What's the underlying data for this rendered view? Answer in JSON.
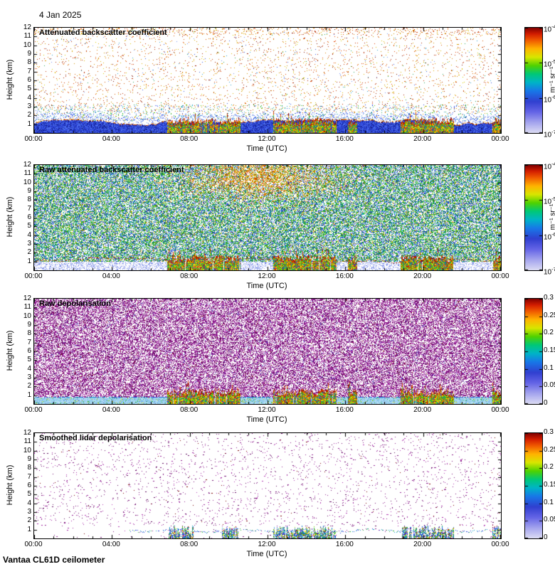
{
  "page": {
    "date_label": "4 Jan 2025",
    "footer": "Vantaa CL61D ceilometer"
  },
  "chart_data": {
    "type": "heatmap",
    "n_panels": 4,
    "x_axis": {
      "label": "Time (UTC)",
      "range_hours": [
        0,
        24
      ],
      "tick_labels": [
        "00:00",
        "04:00",
        "08:00",
        "12:00",
        "16:00",
        "20:00",
        "00:00"
      ]
    },
    "y_axis": {
      "label": "Height (km)",
      "range_km": [
        0,
        12
      ],
      "tick_labels": [
        "1",
        "2",
        "3",
        "4",
        "5",
        "6",
        "7",
        "8",
        "9",
        "10",
        "11",
        "12"
      ]
    },
    "colormap": "jet-like: pale lavender -> blue -> cyan -> green -> yellow -> orange -> dark red",
    "panels": [
      {
        "title": "Attenuated backscatter coefficient",
        "style": "sparse_backscatter",
        "colorbar": {
          "scale": "log",
          "min": 1e-07,
          "max": 0.0001,
          "unit": "m⁻¹ sr⁻¹",
          "ticks": [
            {
              "base": "10",
              "exp": "-4"
            },
            {
              "base": "10",
              "exp": "-5"
            },
            {
              "base": "10",
              "exp": "-6"
            },
            {
              "base": "10",
              "exp": "-7"
            }
          ]
        },
        "features": {
          "boundary_layer_top_km": 1.1,
          "strong_return_events_utc": [
            [
              6.85,
              10.6
            ],
            [
              12.3,
              15.55
            ],
            [
              16.15,
              16.6
            ],
            [
              18.85,
              21.6
            ],
            [
              23.55,
              24
            ]
          ],
          "description": "White background with sparse orange/red noise aloft; solid blue aerosol layer below ~1.2 km with red-brown top edge; strong multicolour low-level returns during events"
        }
      },
      {
        "title": "Raw attenuated backscatter coefficient",
        "style": "dense_backscatter",
        "colorbar": {
          "scale": "log",
          "min": 1e-07,
          "max": 0.0001,
          "unit": "m⁻¹ sr⁻¹",
          "ticks": [
            {
              "base": "10",
              "exp": "-4"
            },
            {
              "base": "10",
              "exp": "-5"
            },
            {
              "base": "10",
              "exp": "-6"
            },
            {
              "base": "10",
              "exp": "-7"
            }
          ]
        },
        "features": {
          "noise_blob": {
            "center_utc": 11.6,
            "center_km": 10.6,
            "sigma_h": 3.2,
            "sigma_km": 2.2
          },
          "strong_return_events_utc": [
            [
              6.85,
              10.6
            ],
            [
              12.3,
              15.55
            ],
            [
              16.15,
              16.6
            ],
            [
              18.85,
              21.6
            ],
            [
              23.55,
              24
            ]
          ],
          "description": "Dense green/cyan/blue speckle at all heights; orange noise patch near 10-12 km around 10:00-13:00; pale blue below ~1 km; strong multicolour low-level returns during events"
        }
      },
      {
        "title": "Raw depolarisation",
        "style": "dense_depol",
        "colorbar": {
          "scale": "linear",
          "min": 0,
          "max": 0.3,
          "ticks": [
            {
              "text": "0.3"
            },
            {
              "text": "0.25"
            },
            {
              "text": "0.2"
            },
            {
              "text": "0.15"
            },
            {
              "text": "0.1"
            },
            {
              "text": "0.05"
            },
            {
              "text": "0"
            }
          ]
        },
        "features": {
          "surface_layer_top_km": 0.75,
          "strong_return_events_utc": [
            [
              6.85,
              10.6
            ],
            [
              12.3,
              15.55
            ],
            [
              16.15,
              16.6
            ],
            [
              18.85,
              21.6
            ],
            [
              23.55,
              24
            ]
          ],
          "description": "Dense magenta/purple noise above ~0.8 km; pale cyan surface layer below with multicolour returns during events"
        }
      },
      {
        "title": "Smoothed lidar depolarisation",
        "style": "sparse_depol",
        "colorbar": {
          "scale": "linear",
          "min": 0,
          "max": 0.3,
          "ticks": [
            {
              "text": "0.3"
            },
            {
              "text": "0.25"
            },
            {
              "text": "0.2"
            },
            {
              "text": "0.15"
            },
            {
              "text": "0.1"
            },
            {
              "text": "0.05"
            },
            {
              "text": "0"
            }
          ]
        },
        "features": {
          "baseline_km": 0.8,
          "strong_return_events_utc": [
            [
              6.9,
              8.2
            ],
            [
              9.6,
              10.5
            ],
            [
              12.3,
              15.5
            ],
            [
              18.9,
              21.6
            ],
            [
              23.55,
              24
            ]
          ],
          "description": "Mostly white with sparse magenta speckle; thin blue/green layer near 0.8-1 km with multicolour low-level returns during events"
        }
      }
    ]
  }
}
